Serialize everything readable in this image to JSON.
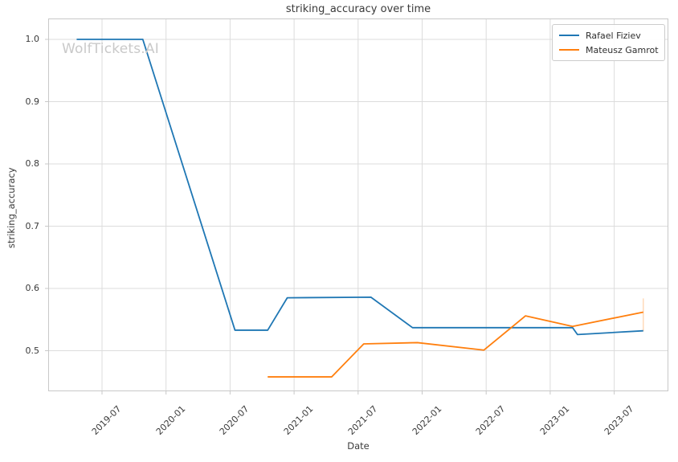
{
  "watermark": "WolfTickets.AI",
  "chart_data": {
    "type": "line",
    "title": "striking_accuracy over time",
    "xlabel": "Date",
    "ylabel": "striking_accuracy",
    "x_ticks": [
      "2019-07",
      "2020-01",
      "2020-07",
      "2021-01",
      "2021-07",
      "2022-01",
      "2022-07",
      "2023-01",
      "2023-07"
    ],
    "y_ticks": [
      "1.0",
      "0.9",
      "0.8",
      "0.7",
      "0.6",
      "0.5"
    ],
    "xlim": [
      "2019-02-01",
      "2023-12-01"
    ],
    "ylim": [
      0.435,
      1.034
    ],
    "grid": true,
    "legend_position": "upper right",
    "series": [
      {
        "name": "Rafael Fiziev",
        "color": "#1f77b4",
        "points": [
          {
            "date": "2019-04-20",
            "value": 1.0
          },
          {
            "date": "2019-10-26",
            "value": 1.0
          },
          {
            "date": "2020-07-15",
            "value": 0.533
          },
          {
            "date": "2020-10-17",
            "value": 0.533
          },
          {
            "date": "2020-12-12",
            "value": 0.585
          },
          {
            "date": "2021-08-07",
            "value": 0.586
          },
          {
            "date": "2021-12-04",
            "value": 0.537
          },
          {
            "date": "2023-03-04",
            "value": 0.537
          },
          {
            "date": "2023-03-18",
            "value": 0.526
          },
          {
            "date": "2023-09-23",
            "value": 0.532
          }
        ]
      },
      {
        "name": "Mateusz Gamrot",
        "color": "#ff7f0e",
        "points": [
          {
            "date": "2020-10-17",
            "value": 0.458
          },
          {
            "date": "2021-04-17",
            "value": 0.458
          },
          {
            "date": "2021-07-17",
            "value": 0.511
          },
          {
            "date": "2021-12-18",
            "value": 0.513
          },
          {
            "date": "2022-06-25",
            "value": 0.501
          },
          {
            "date": "2022-10-22",
            "value": 0.556
          },
          {
            "date": "2023-03-04",
            "value": 0.539
          },
          {
            "date": "2023-09-23",
            "value": 0.562
          }
        ]
      }
    ],
    "annotations": {
      "end_marker": {
        "date": "2023-09-23",
        "value_from": 0.531,
        "value_to": 0.584,
        "color": "#ffd9b8"
      }
    }
  },
  "style_colors": {
    "grid": "#dcdcdc",
    "spine": "#c8c8c8",
    "text": "#3a3a3a"
  }
}
